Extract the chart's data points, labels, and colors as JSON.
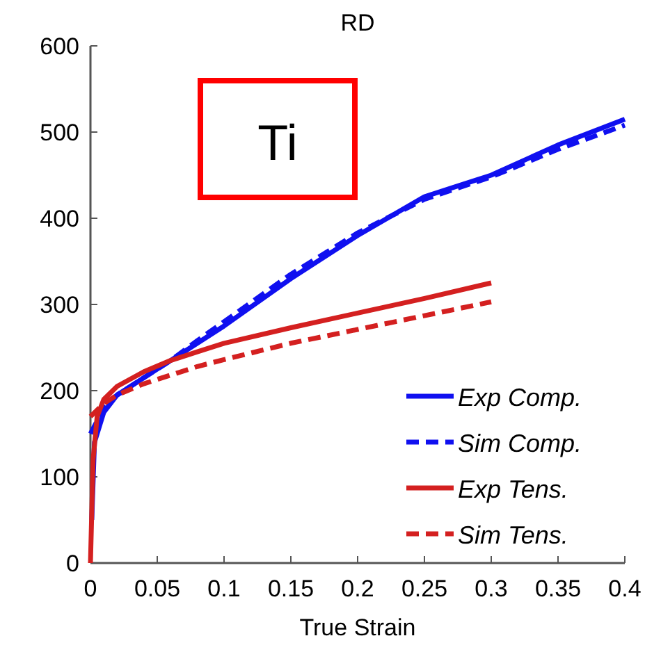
{
  "chart_data": {
    "type": "line",
    "title": "RD",
    "xlabel": "True Strain",
    "annotations": [
      "Ti"
    ],
    "legend": "bottom right",
    "xlim": [
      0,
      0.4
    ],
    "ylim": [
      0,
      600
    ],
    "xticks": [
      0,
      0.05,
      0.1,
      0.15,
      0.2,
      0.25,
      0.3,
      0.35,
      0.4
    ],
    "yticks": [
      0,
      100,
      200,
      300,
      400,
      500,
      600
    ],
    "grid": false,
    "series": [
      {
        "name": "Exp Comp.",
        "color": "#1010f0",
        "line_style": "solid",
        "x": [
          0.001,
          0.003,
          0.01,
          0.02,
          0.04,
          0.06,
          0.08,
          0.1,
          0.15,
          0.2,
          0.25,
          0.27,
          0.3,
          0.35,
          0.4
        ],
        "values": [
          50,
          140,
          175,
          195,
          215,
          235,
          255,
          275,
          330,
          380,
          425,
          435,
          450,
          485,
          515
        ]
      },
      {
        "name": "Sim Comp.",
        "color": "#1010f0",
        "line_style": "dashed",
        "x": [
          0,
          0.01,
          0.02,
          0.04,
          0.06,
          0.08,
          0.1,
          0.15,
          0.2,
          0.25,
          0.3,
          0.35,
          0.4
        ],
        "values": [
          150,
          180,
          195,
          215,
          235,
          258,
          280,
          335,
          383,
          422,
          448,
          480,
          508
        ]
      },
      {
        "name": "Exp Tens.",
        "color": "#d42020",
        "line_style": "solid",
        "x": [
          0,
          0.002,
          0.005,
          0.01,
          0.02,
          0.04,
          0.06,
          0.08,
          0.1,
          0.15,
          0.2,
          0.25,
          0.3
        ],
        "values": [
          0,
          120,
          170,
          190,
          205,
          222,
          235,
          245,
          255,
          273,
          290,
          307,
          325
        ]
      },
      {
        "name": "Sim Tens.",
        "color": "#d42020",
        "line_style": "dashed",
        "x": [
          0,
          0.01,
          0.02,
          0.04,
          0.06,
          0.08,
          0.1,
          0.15,
          0.2,
          0.25,
          0.3
        ],
        "values": [
          170,
          185,
          195,
          208,
          218,
          228,
          236,
          255,
          271,
          287,
          303
        ]
      }
    ]
  }
}
